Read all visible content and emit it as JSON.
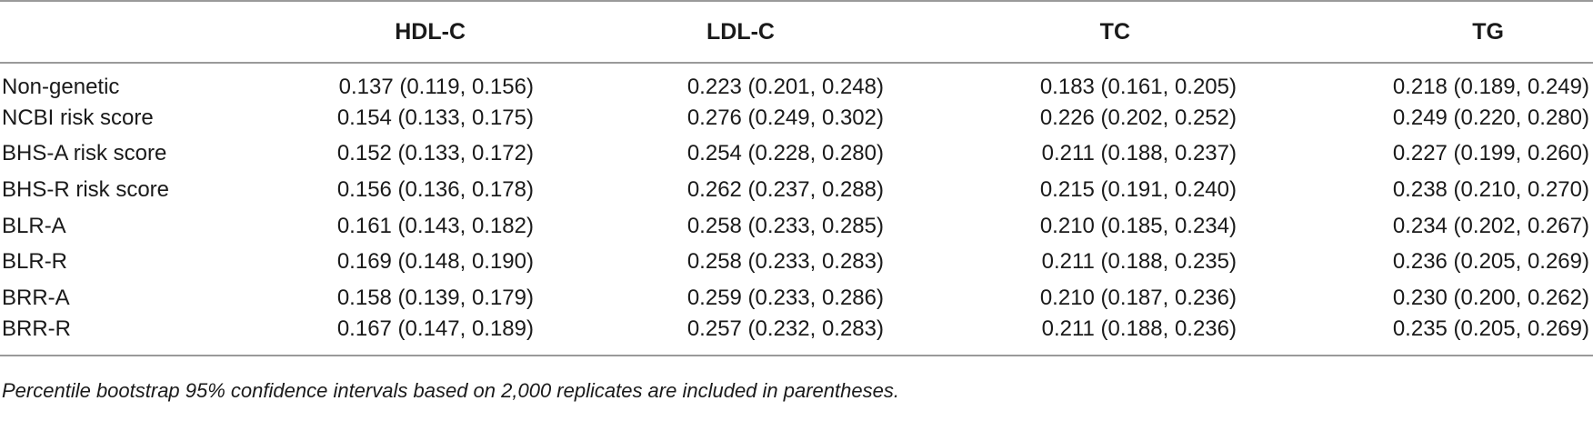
{
  "table": {
    "headers": [
      "",
      "HDL-C",
      "LDL-C",
      "TC",
      "TG"
    ],
    "rows": [
      [
        "Non-genetic",
        "0.137 (0.119, 0.156)",
        "0.223 (0.201, 0.248)",
        "0.183 (0.161, 0.205)",
        "0.218 (0.189, 0.249)"
      ],
      [
        "NCBI risk score",
        "0.154 (0.133, 0.175)",
        "0.276 (0.249, 0.302)",
        "0.226 (0.202, 0.252)",
        "0.249 (0.220, 0.280)"
      ],
      [
        "BHS-A risk score",
        "0.152 (0.133, 0.172)",
        "0.254 (0.228, 0.280)",
        "0.211 (0.188, 0.237)",
        "0.227 (0.199, 0.260)"
      ],
      [
        "BHS-R risk score",
        "0.156 (0.136, 0.178)",
        "0.262 (0.237, 0.288)",
        "0.215 (0.191, 0.240)",
        "0.238 (0.210, 0.270)"
      ],
      [
        "BLR-A",
        "0.161 (0.143, 0.182)",
        "0.258 (0.233, 0.285)",
        "0.210 (0.185, 0.234)",
        "0.234 (0.202, 0.267)"
      ],
      [
        "BLR-R",
        "0.169 (0.148, 0.190)",
        "0.258 (0.233, 0.283)",
        "0.211 (0.188, 0.235)",
        "0.236 (0.205, 0.269)"
      ],
      [
        "BRR-A",
        "0.158 (0.139, 0.179)",
        "0.259 (0.233, 0.286)",
        "0.210 (0.187, 0.236)",
        "0.230 (0.200, 0.262)"
      ],
      [
        "BRR-R",
        "0.167 (0.147, 0.189)",
        "0.257 (0.232, 0.283)",
        "0.211 (0.188, 0.236)",
        "0.235 (0.205, 0.269)"
      ]
    ]
  },
  "footnote": "Percentile bootstrap 95% confidence intervals based on 2,000 replicates are included in parentheses."
}
